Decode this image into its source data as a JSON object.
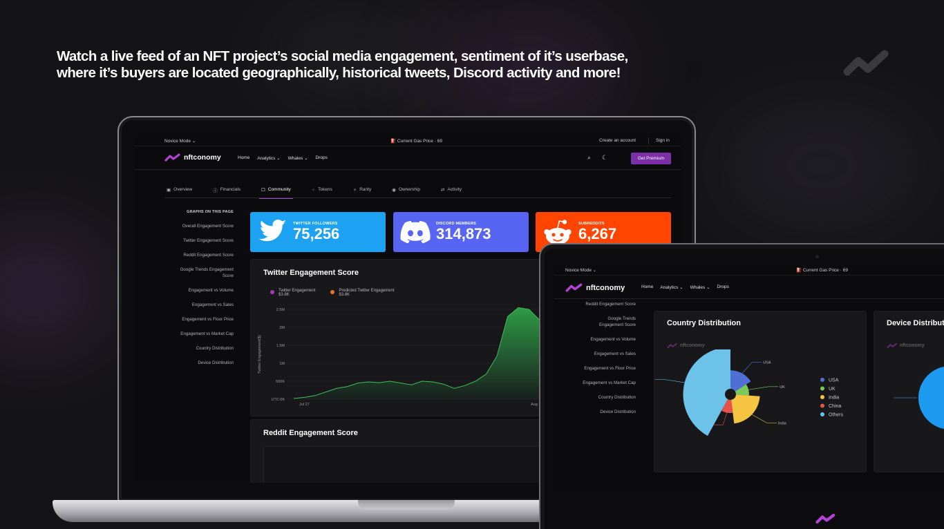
{
  "headline": {
    "line1": "Watch a live feed of an NFT project’s social media engagement, sentiment of it’s userbase,",
    "line2": "where it’s buyers are located geographically, historical tweets, Discord activity and more!"
  },
  "colors": {
    "accent": "#7b2fa8",
    "twitter": "#1da1f2",
    "discord": "#5865f2",
    "reddit": "#ff4500",
    "line": "#3fbf5a"
  },
  "topbar": {
    "mode": "Novice Mode",
    "gas": "Current Gas Price · 69",
    "create_account": "Create an account",
    "sign_in": "Sign in"
  },
  "nav": {
    "brand": "nftconomy",
    "home": "Home",
    "analytics": "Analytics",
    "whales": "Whales",
    "drops": "Drops",
    "premium": "Get Premium"
  },
  "tabs": [
    "Overview",
    "Financials",
    "Community",
    "Tokens",
    "Rarity",
    "Ownership",
    "Activity"
  ],
  "sidebar": {
    "heading": "GRAPHS ON THIS PAGE",
    "items": [
      "Overall Engagement Score",
      "Twitter Engagement Score",
      "Reddit Engagement Score",
      "Google Trends Engagement Score",
      "Engagement vs Volume",
      "Engagement vs Sales",
      "Engagement vs Floor Price",
      "Engagement vs Market Cap",
      "Country Distribution",
      "Device Distribution"
    ]
  },
  "stats": {
    "twitter": {
      "label": "TWITTER FOLLOWERS",
      "value": "75,256"
    },
    "discord": {
      "label": "DISCORD MEMBERS",
      "value": "314,873"
    },
    "reddit": {
      "label": "SUBREDDITS",
      "value": "6,267"
    }
  },
  "twitter_card": {
    "title": "Twitter Engagement Score",
    "legend": [
      {
        "name": "Twitter Engagement",
        "value": "$3.8K",
        "color": "#9b3fb5"
      },
      {
        "name": "Predicted Twitter Engagement",
        "value": "$3.8K",
        "color": "#e8742c"
      }
    ],
    "ylabel": "Twitter Engagement($)",
    "yticks": [
      "2.5M",
      "2M",
      "1.5M",
      "1M",
      "500K",
      "UTC:0K"
    ],
    "xticks": [
      "Jul 27",
      "Aug"
    ]
  },
  "reddit_card": {
    "title": "Reddit Engagement Score"
  },
  "tablet": {
    "mode": "Novice Mode",
    "gas": "Current Gas Price · 69",
    "brand": "nftconomy",
    "nav": [
      "Home",
      "Analytics",
      "Whales",
      "Drops"
    ],
    "sidebar": [
      "Reddit Engagement Score",
      "Google Trends Engagement Score",
      "Engagement vs Volume",
      "Engagement vs Sales",
      "Engagement vs Floor Price",
      "Engagement vs Market Cap",
      "Country Distribution",
      "Device Distribution"
    ],
    "country_card": {
      "title": "Country Distribution",
      "watermark": "nftconomy"
    },
    "device_card": {
      "title": "Device Distribution",
      "watermark": "nftconomy"
    }
  },
  "chart_data": [
    {
      "type": "line",
      "title": "Twitter Engagement Score",
      "ylabel": "Twitter Engagement($)",
      "series": [
        {
          "name": "Twitter Engagement",
          "values": [
            0.02,
            0.05,
            0.1,
            0.2,
            0.3,
            0.35,
            0.45,
            0.48,
            0.46,
            0.5,
            0.45,
            0.4,
            0.5,
            0.48,
            0.42,
            0.3,
            0.38,
            0.5,
            0.7,
            1.2,
            2.3,
            2.55,
            2.5,
            2.2
          ]
        }
      ],
      "ylim": [
        0,
        2.5
      ]
    },
    {
      "type": "pie",
      "title": "Country Distribution",
      "labels": [
        "USA",
        "UK",
        "India",
        "China",
        "Others"
      ],
      "values": [
        16,
        10,
        22,
        10,
        42
      ],
      "colors": [
        "#4f6fd6",
        "#7ac95a",
        "#f5c542",
        "#e5534b",
        "#6cc2e8"
      ]
    }
  ]
}
